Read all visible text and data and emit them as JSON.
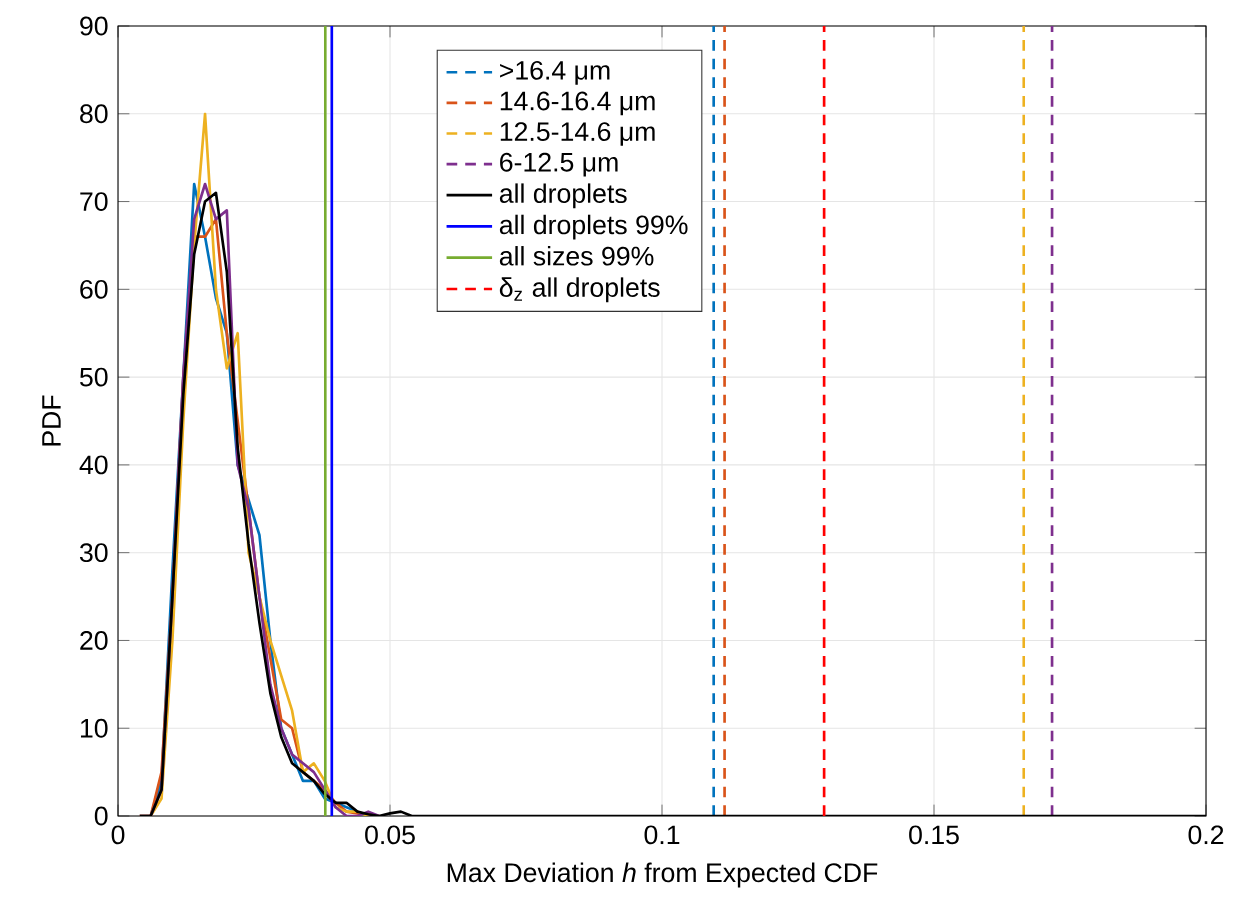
{
  "chart_data": {
    "type": "line",
    "xlabel": "Max Deviation *h* from Expected CDF",
    "ylabel": "PDF",
    "xlim": [
      0,
      0.2
    ],
    "ylim": [
      0,
      90
    ],
    "xticks": [
      0,
      0.05,
      0.1,
      0.15,
      0.2
    ],
    "yticks": [
      0,
      10,
      20,
      30,
      40,
      50,
      60,
      70,
      80,
      90
    ],
    "grid": true,
    "legend": "top",
    "marker": "none",
    "x": [
      0.004,
      0.006,
      0.008,
      0.01,
      0.012,
      0.014,
      0.016,
      0.018,
      0.02,
      0.022,
      0.024,
      0.026,
      0.028,
      0.03,
      0.032,
      0.034,
      0.036,
      0.038,
      0.04,
      0.042,
      0.044,
      0.046,
      0.048,
      0.05,
      0.052,
      0.054,
      0.056,
      0.2
    ],
    "series": [
      {
        "color": "#0072bd",
        "line_style": "solid",
        "x": [
          0.004,
          0.006,
          0.008,
          0.01,
          0.012,
          0.014,
          0.016,
          0.018,
          0.02,
          0.022,
          0.024,
          0.026,
          0.028,
          0.03,
          0.032,
          0.034,
          0.036,
          0.038,
          0.04,
          0.042,
          0.044,
          0.046
        ],
        "values": [
          0,
          0,
          4,
          28,
          50,
          72,
          66,
          59,
          55,
          40,
          36,
          32,
          20,
          10,
          7,
          4,
          4,
          2,
          1.5,
          1,
          0.5,
          0
        ]
      },
      {
        "color": "#d95319",
        "line_style": "solid",
        "x": [
          0.004,
          0.006,
          0.008,
          0.01,
          0.012,
          0.014,
          0.016,
          0.018,
          0.02,
          0.022,
          0.024,
          0.026,
          0.028,
          0.03,
          0.032,
          0.034,
          0.036,
          0.038,
          0.04,
          0.042,
          0.044,
          0.046,
          0.048
        ],
        "values": [
          0,
          0,
          5,
          25,
          50,
          66,
          66,
          68,
          55,
          45,
          35,
          25,
          18,
          11,
          10,
          5,
          4,
          3,
          1.5,
          0.5,
          0.3,
          0.2,
          0
        ]
      },
      {
        "color": "#edb120",
        "line_style": "solid",
        "x": [
          0.004,
          0.006,
          0.008,
          0.01,
          0.012,
          0.014,
          0.016,
          0.018,
          0.02,
          0.022,
          0.024,
          0.026,
          0.028,
          0.03,
          0.032,
          0.034,
          0.036,
          0.038,
          0.04,
          0.042,
          0.044,
          0.046
        ],
        "values": [
          0,
          0,
          2,
          20,
          45,
          65,
          80,
          60,
          51,
          55,
          30,
          25,
          20,
          16,
          12,
          5,
          6,
          4,
          1,
          0.5,
          0.5,
          0
        ]
      },
      {
        "color": "#7e2f8e",
        "line_style": "solid",
        "x": [
          0.004,
          0.006,
          0.008,
          0.01,
          0.012,
          0.014,
          0.016,
          0.018,
          0.02,
          0.022,
          0.024,
          0.026,
          0.028,
          0.03,
          0.032,
          0.034,
          0.036,
          0.038,
          0.04,
          0.042,
          0.044,
          0.046,
          0.048
        ],
        "values": [
          0,
          0,
          3,
          25,
          50,
          68,
          72,
          68,
          69,
          40,
          35,
          25,
          15,
          10,
          7,
          6,
          5,
          3,
          1,
          0,
          0,
          0.5,
          0
        ]
      },
      {
        "name": ">16.4 μm",
        "color": "#0072bd",
        "line_style": "dashed",
        "x": [
          0.1095,
          0.1095
        ],
        "values": [
          0,
          90
        ]
      },
      {
        "name": "14.6-16.4 μm",
        "color": "#d95319",
        "line_style": "dashed",
        "x": [
          0.1115,
          0.1115
        ],
        "values": [
          0,
          90
        ]
      },
      {
        "name": "12.5-14.6 μm",
        "color": "#edb120",
        "line_style": "dashed",
        "x": [
          0.1665,
          0.1665
        ],
        "values": [
          0,
          90
        ]
      },
      {
        "name": "6-12.5 μm",
        "color": "#7e2f8e",
        "line_style": "dashed",
        "x": [
          0.1717,
          0.1717
        ],
        "values": [
          0,
          90
        ]
      },
      {
        "name": "all droplets",
        "color": "#000000",
        "line_style": "solid",
        "values": [
          0,
          0,
          3,
          25,
          48,
          64,
          70,
          71,
          62,
          42,
          31,
          22,
          14,
          9,
          6,
          5,
          4,
          2.5,
          1.5,
          1.5,
          0.5,
          0.2,
          0,
          0.3,
          0.5,
          0,
          0,
          0
        ]
      },
      {
        "name": "all droplets 99%",
        "color": "#0000ff",
        "line_style": "solid",
        "x": [
          0.0393,
          0.0393
        ],
        "values": [
          0,
          90
        ]
      },
      {
        "name": "all sizes 99%",
        "color": "#77ac30",
        "line_style": "solid",
        "x": [
          0.0381,
          0.0381
        ],
        "values": [
          0,
          90
        ]
      },
      {
        "name": "δ$_{z}$ all droplets",
        "color": "#ff0000",
        "line_style": "dashed",
        "x": [
          0.1298,
          0.1298
        ],
        "values": [
          0,
          90
        ]
      }
    ]
  }
}
